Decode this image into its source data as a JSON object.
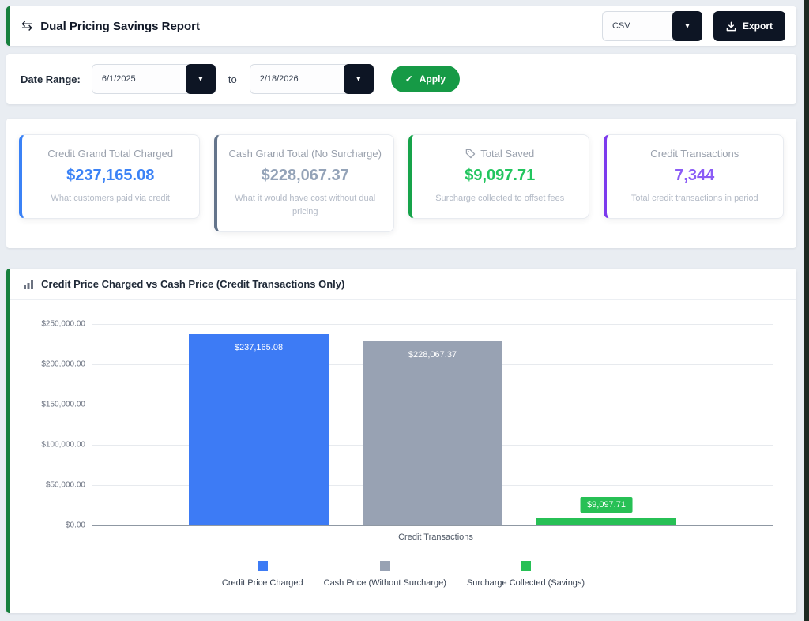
{
  "header": {
    "title": "Dual Pricing Savings Report",
    "format_select_value": "CSV",
    "export_label": "Export"
  },
  "filters": {
    "label": "Date Range:",
    "start_date": "6/1/2025",
    "to_label": "to",
    "end_date": "2/18/2026",
    "apply_label": "Apply"
  },
  "summary_cards": [
    {
      "title": "Credit Grand Total Charged",
      "value": "$237,165.08",
      "subtitle": "What customers paid via credit",
      "accent_color": "#3b82f6",
      "value_color": "#3b82f6"
    },
    {
      "title": "Cash Grand Total (No Surcharge)",
      "value": "$228,067.37",
      "subtitle": "What it would have cost without dual pricing",
      "accent_color": "#64748b",
      "value_color": "#94a3b8"
    },
    {
      "title": "Total Saved",
      "value": "$9,097.71",
      "subtitle": "Surcharge collected to offset fees",
      "accent_color": "#16a34a",
      "value_color": "#22c55e",
      "icon": "tag-icon"
    },
    {
      "title": "Credit Transactions",
      "value": "7,344",
      "subtitle": "Total credit transactions in period",
      "accent_color": "#7c3aed",
      "value_color": "#8b5cf6"
    }
  ],
  "chart": {
    "title": "Credit Price Charged vs Cash Price (Credit Transactions Only)"
  },
  "chart_data": {
    "type": "bar",
    "categories": [
      "Credit Transactions"
    ],
    "series": [
      {
        "name": "Credit Price Charged",
        "values": [
          237165.08
        ],
        "label": "$237,165.08",
        "color": "#3d7bf5"
      },
      {
        "name": "Cash Price (Without Surcharge)",
        "values": [
          228067.37
        ],
        "label": "$228,067.37",
        "color": "#98a2b3"
      },
      {
        "name": "Surcharge Collected (Savings)",
        "values": [
          9097.71
        ],
        "label": "$9,097.71",
        "color": "#27c055"
      }
    ],
    "xlabel": "Credit Transactions",
    "ylim": [
      0,
      250000
    ],
    "yticks": [
      "$250,000.00",
      "$200,000.00",
      "$150,000.00",
      "$100,000.00",
      "$50,000.00",
      "$0.00"
    ],
    "grid": true,
    "legend_position": "bottom"
  }
}
